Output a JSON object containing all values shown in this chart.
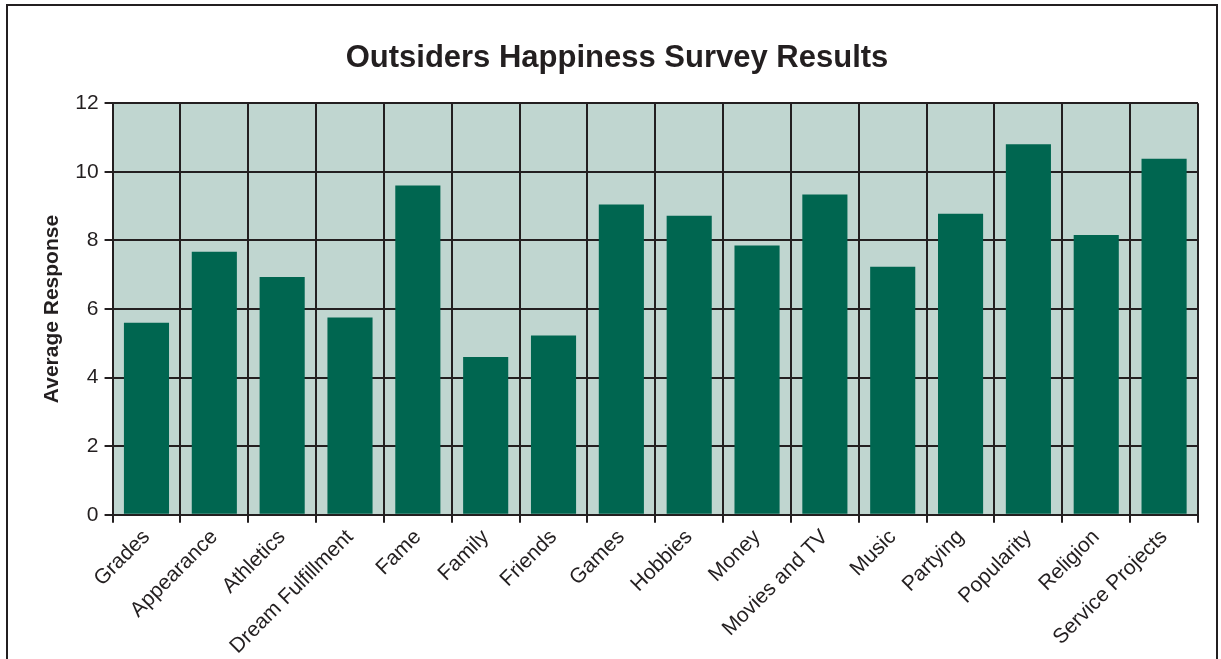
{
  "chart_data": {
    "type": "bar",
    "title": "Outsiders Happiness Survey Results",
    "ylabel": "Average Response",
    "categories": [
      "Grades",
      "Appearance",
      "Athletics",
      "Dream Fulfillment",
      "Fame",
      "Family",
      "Friends",
      "Games",
      "Hobbies",
      "Money",
      "Movies and TV",
      "Music",
      "Partying",
      "Popularity",
      "Religion",
      "Service Projects"
    ],
    "values": [
      5.6,
      7.67,
      6.93,
      5.75,
      9.6,
      4.6,
      5.23,
      9.05,
      8.72,
      7.85,
      9.34,
      7.23,
      8.78,
      10.8,
      8.16,
      10.38
    ],
    "color": "#006650",
    "ylim": [
      0,
      12
    ],
    "yticks": [
      0,
      2,
      4,
      6,
      8,
      10,
      12
    ],
    "grid": true,
    "legend": false
  }
}
